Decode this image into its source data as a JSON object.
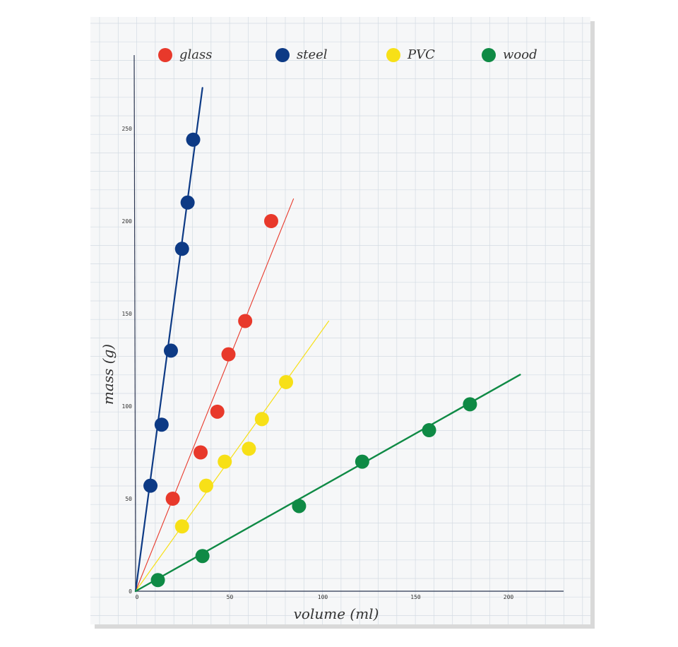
{
  "chart_data": {
    "type": "scatter",
    "title": "",
    "xlabel": "volume (ml)",
    "ylabel": "mass (g)",
    "xlim": [
      0,
      230
    ],
    "ylim": [
      0,
      285
    ],
    "x_ticks": [
      "0",
      "50",
      "100",
      "150",
      "200"
    ],
    "x_tick_values": [
      0,
      50,
      100,
      150,
      200
    ],
    "y_ticks": [
      "0",
      "50",
      "100",
      "150",
      "200",
      "250"
    ],
    "y_tick_values": [
      0,
      50,
      100,
      150,
      200,
      250
    ],
    "grid": true,
    "legend_position": "top",
    "series": [
      {
        "name": "glass",
        "color": "#e8392b",
        "points": [
          [
            20,
            50
          ],
          [
            35,
            75
          ],
          [
            44,
            97
          ],
          [
            50,
            128
          ],
          [
            59,
            146
          ],
          [
            73,
            200
          ]
        ],
        "trend": [
          [
            0,
            0
          ],
          [
            85,
            212
          ]
        ]
      },
      {
        "name": "steel",
        "color": "#0d3a85",
        "points": [
          [
            8,
            57
          ],
          [
            14,
            90
          ],
          [
            19,
            130
          ],
          [
            25,
            185
          ],
          [
            28,
            210
          ],
          [
            31,
            244
          ]
        ],
        "trend": [
          [
            0,
            0
          ],
          [
            36,
            272
          ]
        ]
      },
      {
        "name": "PVC",
        "color": "#f7e017",
        "points": [
          [
            25,
            35
          ],
          [
            38,
            57
          ],
          [
            48,
            70
          ],
          [
            61,
            77
          ],
          [
            68,
            93
          ],
          [
            81,
            113
          ]
        ],
        "trend": [
          [
            0,
            0
          ],
          [
            104,
            146
          ]
        ]
      },
      {
        "name": "wood",
        "color": "#0f8a45",
        "points": [
          [
            12,
            6
          ],
          [
            36,
            19
          ],
          [
            88,
            46
          ],
          [
            122,
            70
          ],
          [
            158,
            87
          ],
          [
            180,
            101
          ]
        ],
        "trend": [
          [
            0,
            0
          ],
          [
            207,
            117
          ]
        ]
      }
    ]
  }
}
